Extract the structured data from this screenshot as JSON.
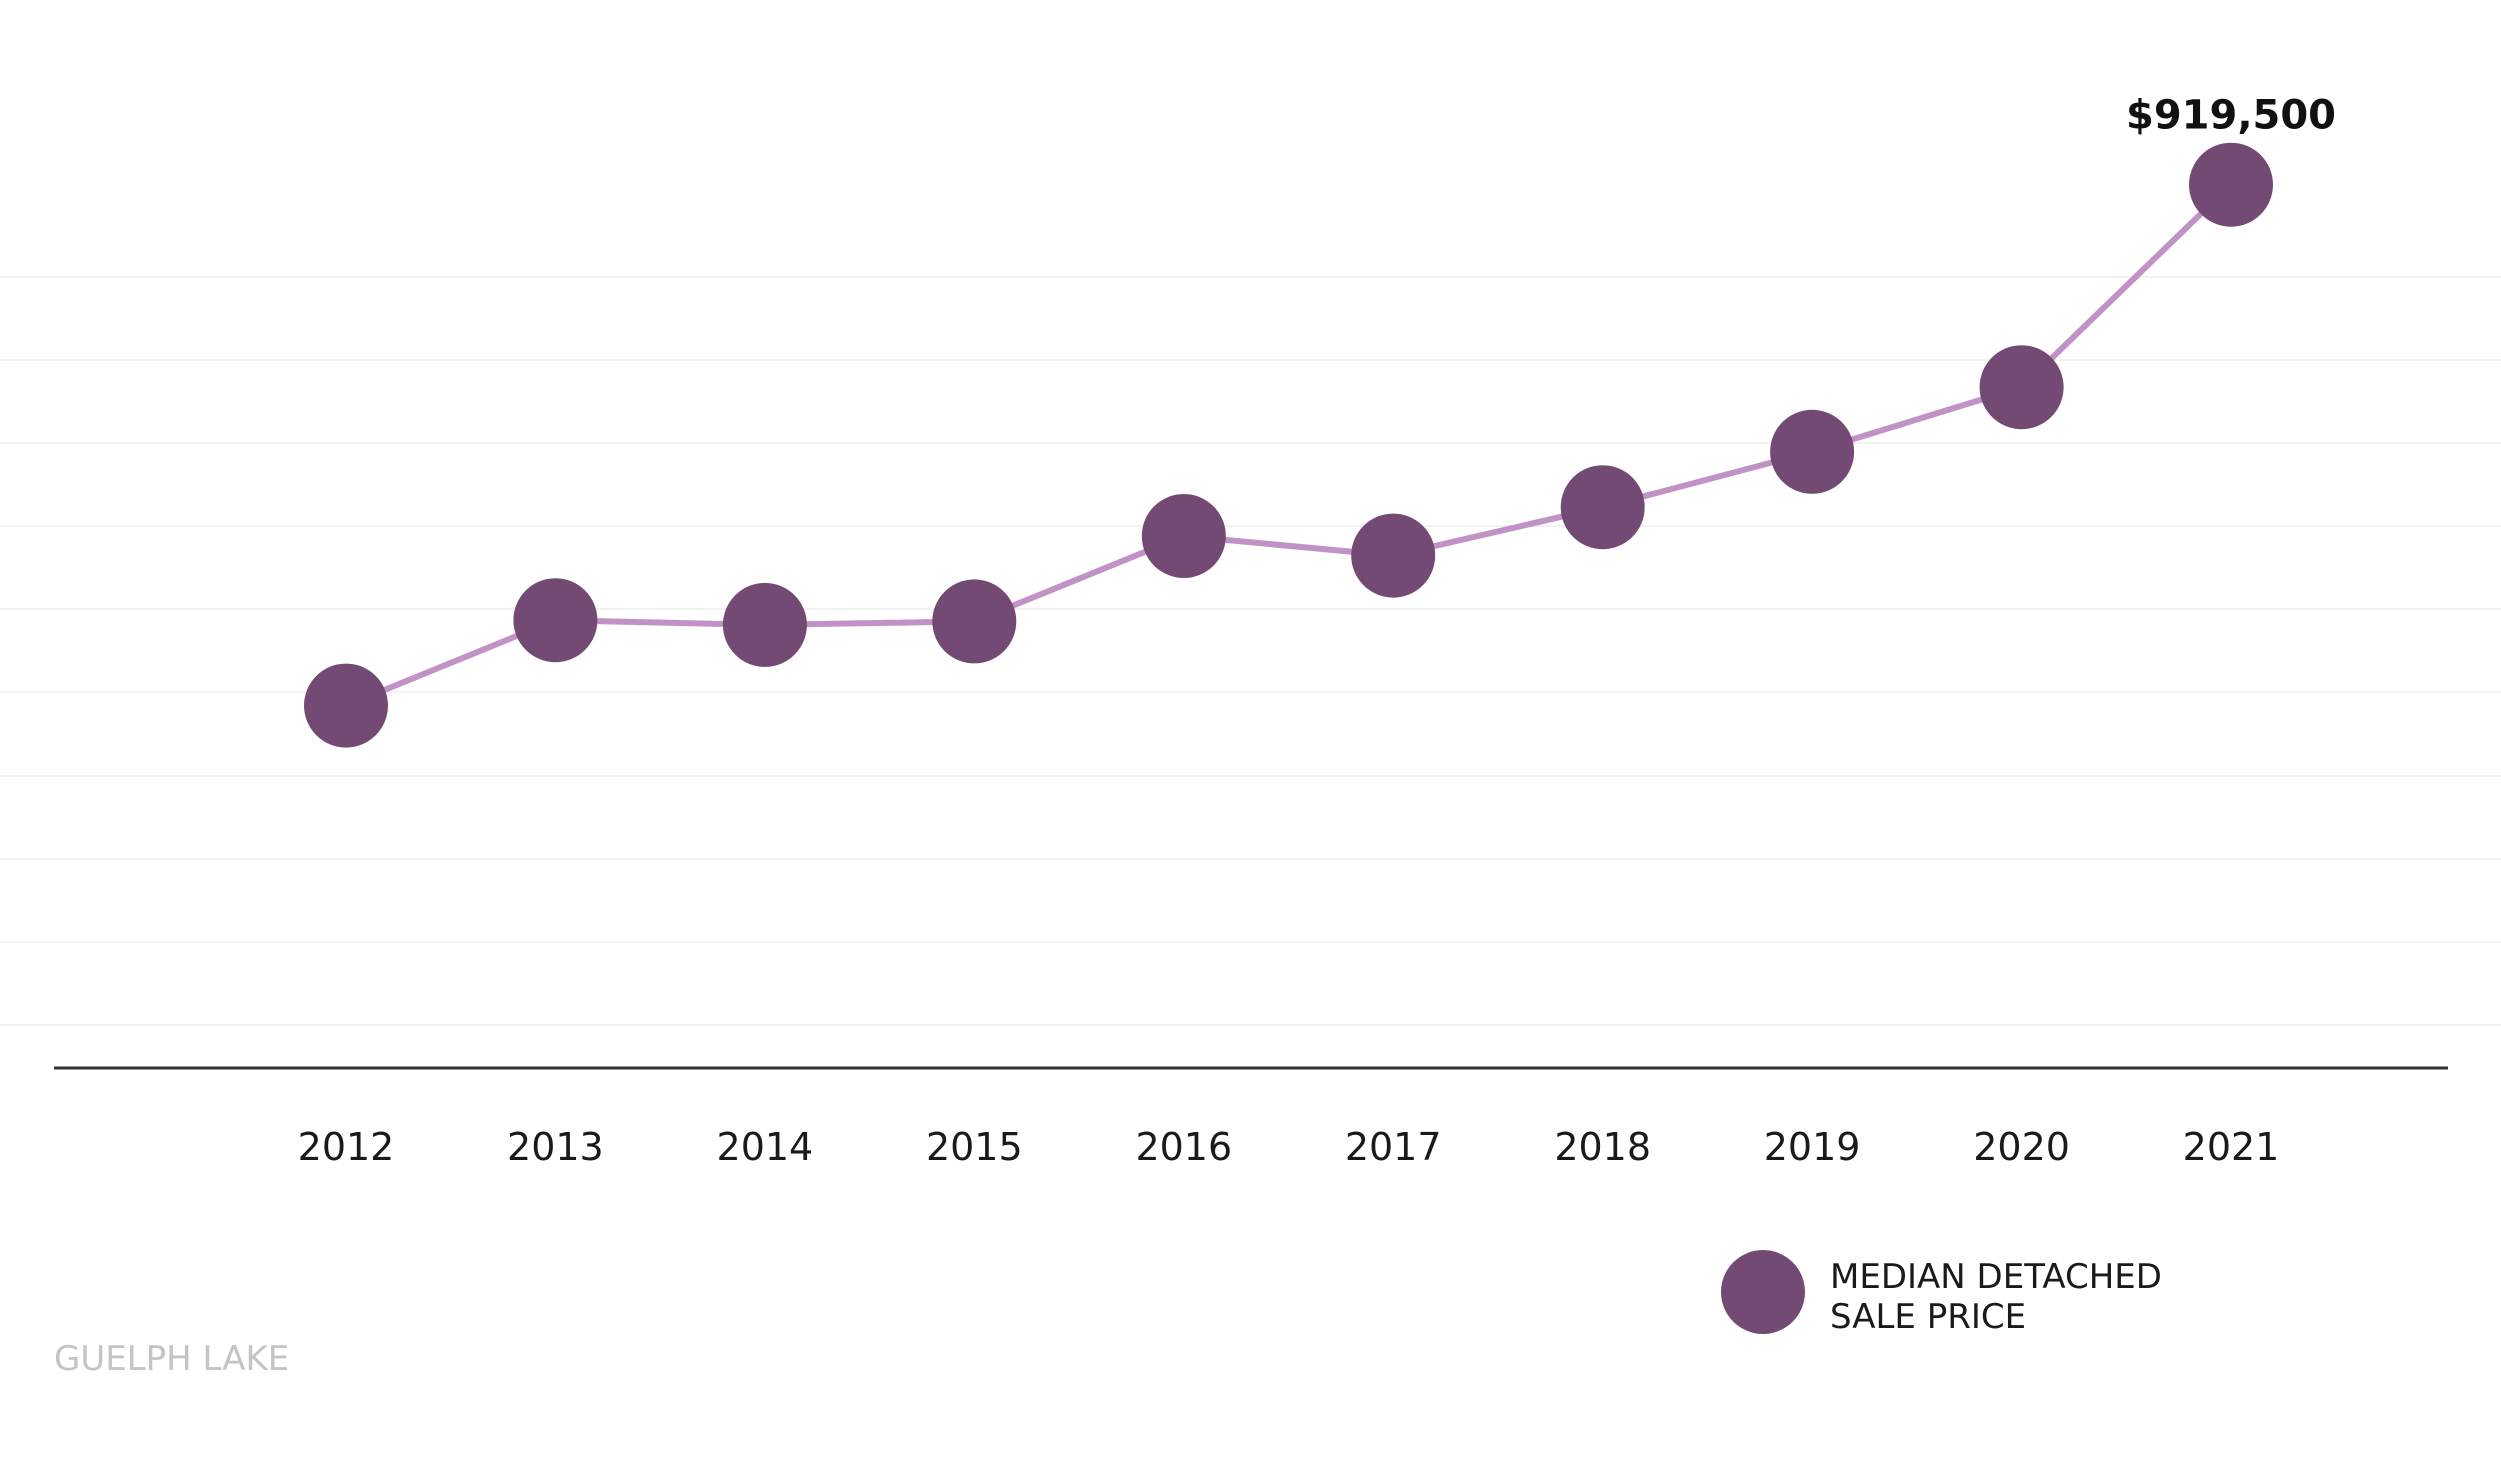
{
  "chart_data": {
    "type": "line",
    "categories": [
      "2012",
      "2013",
      "2014",
      "2015",
      "2016",
      "2017",
      "2018",
      "2019",
      "2020",
      "2021"
    ],
    "series": [
      {
        "name": "MEDIAN DETACHED SALE PRICE",
        "values": [
          468000,
          542000,
          538000,
          541000,
          615000,
          598000,
          640000,
          688000,
          744000,
          919500
        ]
      }
    ],
    "data_labels": [
      {
        "category": "2021",
        "text": "$919,500"
      }
    ],
    "legend": {
      "position": "bottom-right",
      "lines": [
        "MEDIAN DETACHED",
        "SALE PRICE"
      ]
    },
    "ylim": [
      0,
      1000000
    ],
    "grid": true,
    "colors": {
      "marker": "#734a74",
      "line": "#c192c6",
      "gridline": "#f2f2f2",
      "axis": "#333333"
    }
  },
  "footer": {
    "label": "GUELPH LAKE"
  }
}
